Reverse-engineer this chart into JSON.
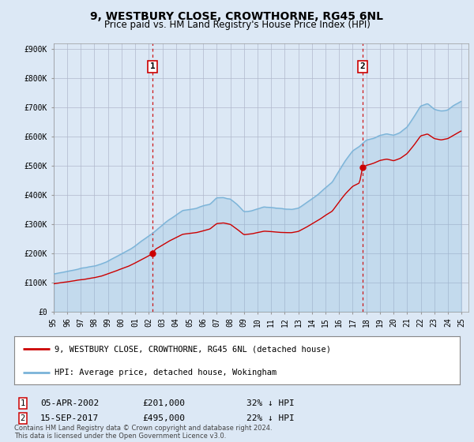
{
  "title": "9, WESTBURY CLOSE, CROWTHORNE, RG45 6NL",
  "subtitle": "Price paid vs. HM Land Registry's House Price Index (HPI)",
  "ylabel_ticks": [
    "£0",
    "£100K",
    "£200K",
    "£300K",
    "£400K",
    "£500K",
    "£600K",
    "£700K",
    "£800K",
    "£900K"
  ],
  "ytick_values": [
    0,
    100000,
    200000,
    300000,
    400000,
    500000,
    600000,
    700000,
    800000,
    900000
  ],
  "ylim": [
    0,
    920000
  ],
  "xlim_start": 1995.0,
  "xlim_end": 2025.5,
  "sale1_date": 2002.27,
  "sale1_price": 201000,
  "sale2_date": 2017.71,
  "sale2_price": 495000,
  "legend_entries": [
    "9, WESTBURY CLOSE, CROWTHORNE, RG45 6NL (detached house)",
    "HPI: Average price, detached house, Wokingham"
  ],
  "table_rows": [
    {
      "num": "1",
      "date": "05-APR-2002",
      "price": "£201,000",
      "pct": "32% ↓ HPI"
    },
    {
      "num": "2",
      "date": "15-SEP-2017",
      "price": "£495,000",
      "pct": "22% ↓ HPI"
    }
  ],
  "footnote": "Contains HM Land Registry data © Crown copyright and database right 2024.\nThis data is licensed under the Open Government Licence v3.0.",
  "hpi_color": "#7ab3d8",
  "sale_color": "#cc0000",
  "vline_color": "#cc0000",
  "background_color": "#dce8f5",
  "plot_bg_color": "#dce8f5",
  "plot_inner_bg": "#dce8f5",
  "grid_color": "#aaaacc",
  "label_marker_color": "#cc0000"
}
